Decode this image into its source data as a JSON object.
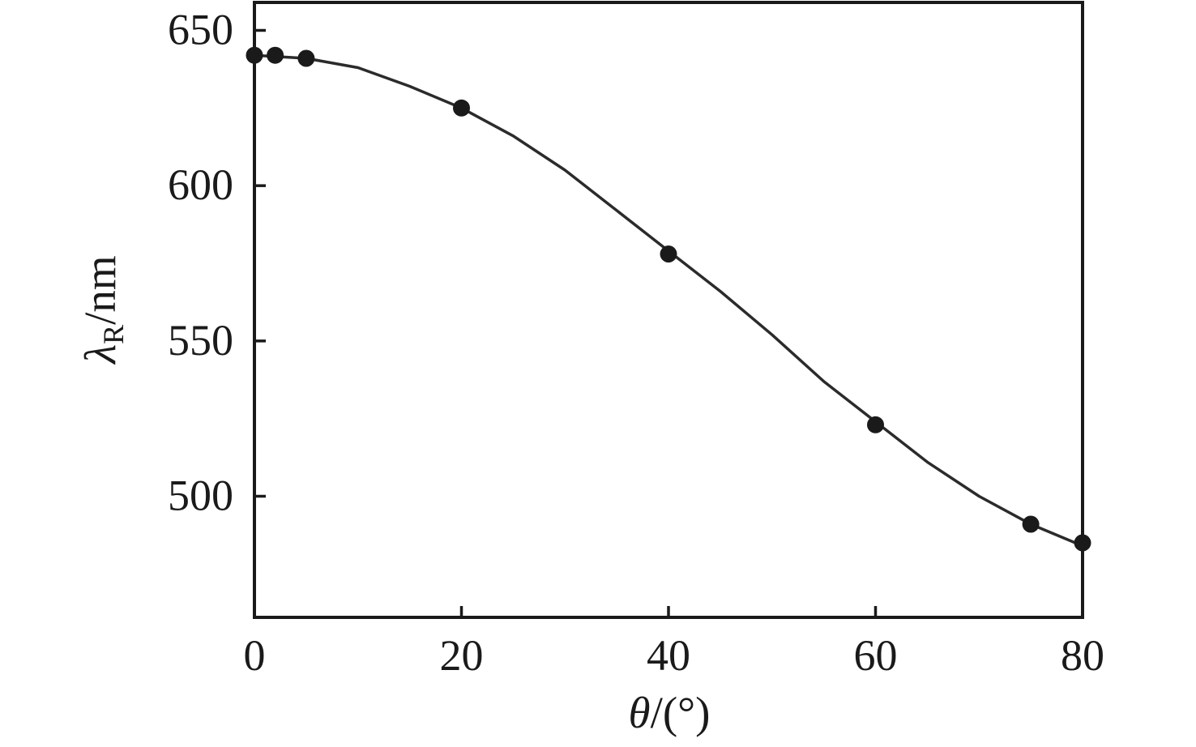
{
  "figure": {
    "background": "#ffffff",
    "ink_color": "#1a1a1a",
    "curve_color": "#2b2b2b",
    "marker_color": "#1a1a1a"
  },
  "chart_data": {
    "type": "scatter",
    "title": "",
    "xlabel": "θ/(°)",
    "ylabel": "λR/nm",
    "xlabel_parts": {
      "symbol": "θ",
      "rest": "/(°)"
    },
    "ylabel_parts": {
      "symbol": "λ",
      "subscript": "R",
      "rest": "/nm"
    },
    "xlim": [
      0,
      80
    ],
    "ylim": [
      461,
      659
    ],
    "x_ticks": [
      0,
      20,
      40,
      60,
      80
    ],
    "y_ticks": [
      500,
      550,
      600,
      650
    ],
    "grid": false,
    "legend": null,
    "series": [
      {
        "id": "measured-points",
        "type": "scatter",
        "marker": "filled-circle",
        "points": [
          [
            0,
            642
          ],
          [
            2,
            642
          ],
          [
            5,
            641
          ],
          [
            20,
            625
          ],
          [
            40,
            578
          ],
          [
            60,
            523
          ],
          [
            75,
            491
          ],
          [
            80,
            485
          ]
        ]
      },
      {
        "id": "fit-curve",
        "type": "line",
        "points": [
          [
            0,
            642
          ],
          [
            5,
            641
          ],
          [
            10,
            638
          ],
          [
            15,
            632
          ],
          [
            20,
            625
          ],
          [
            25,
            616
          ],
          [
            30,
            605
          ],
          [
            35,
            592
          ],
          [
            40,
            579
          ],
          [
            45,
            566
          ],
          [
            50,
            552
          ],
          [
            55,
            537
          ],
          [
            60,
            524
          ],
          [
            65,
            511
          ],
          [
            70,
            500
          ],
          [
            75,
            491
          ],
          [
            80,
            484
          ]
        ]
      }
    ]
  }
}
